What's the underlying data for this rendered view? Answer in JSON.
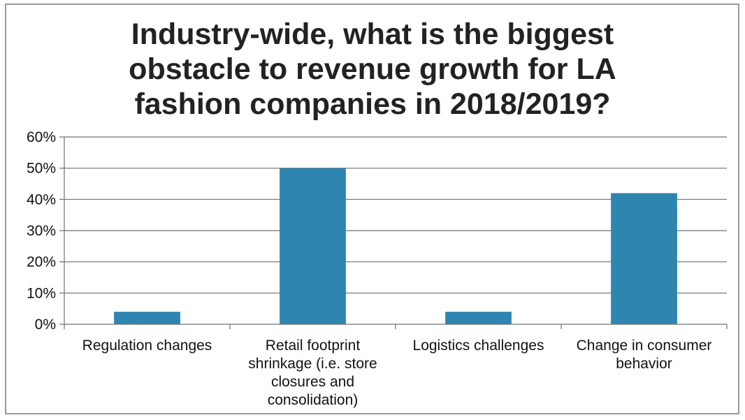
{
  "chart_data": {
    "type": "bar",
    "title": "Industry-wide, what is the biggest obstacle to revenue growth for LA fashion companies in 2018/2019?",
    "categories": [
      "Regulation changes",
      "Retail footprint shrinkage (i.e. store closures and consolidation)",
      "Logistics challenges",
      "Change in consumer behavior"
    ],
    "category_lines": [
      [
        "Regulation changes"
      ],
      [
        "Retail footprint",
        "shrinkage (i.e. store",
        "closures and",
        "consolidation)"
      ],
      [
        "Logistics challenges"
      ],
      [
        "Change in consumer",
        "behavior"
      ]
    ],
    "values": [
      0.04,
      0.5,
      0.04,
      0.42
    ],
    "ylim": [
      0,
      0.6
    ],
    "yticks": [
      0,
      0.1,
      0.2,
      0.3,
      0.4,
      0.5,
      0.6
    ],
    "ytick_labels": [
      "0%",
      "10%",
      "20%",
      "30%",
      "40%",
      "50%",
      "60%"
    ],
    "grid": true,
    "legend": false,
    "bar_color": "#2e86b0",
    "xlabel": "",
    "ylabel": ""
  }
}
